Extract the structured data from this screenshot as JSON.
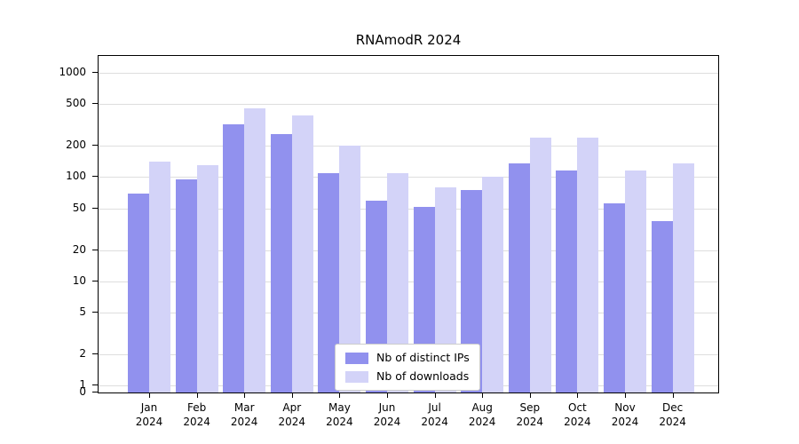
{
  "title": "RNAmodR 2024",
  "colors": {
    "distinct_ips": "#9191ee",
    "downloads": "#d3d3f8",
    "grid": "#dedede",
    "axis": "#000000",
    "legend_border": "#cccccc",
    "background": "#ffffff"
  },
  "y_axis": {
    "ticks": [
      0,
      1,
      2,
      5,
      10,
      20,
      50,
      100,
      200,
      500,
      1000
    ]
  },
  "legend": {
    "items": [
      {
        "label": "Nb of distinct IPs",
        "series": "distinct_ips"
      },
      {
        "label": "Nb of downloads",
        "series": "downloads"
      }
    ]
  },
  "chart_data": {
    "type": "bar",
    "title": "RNAmodR 2024",
    "categories": [
      "Jan 2024",
      "Feb 2024",
      "Mar 2024",
      "Apr 2024",
      "May 2024",
      "Jun 2024",
      "Jul 2024",
      "Aug 2024",
      "Sep 2024",
      "Oct 2024",
      "Nov 2024",
      "Dec 2024"
    ],
    "series": [
      {
        "name": "Nb of distinct IPs",
        "values": [
          70,
          95,
          320,
          260,
          110,
          60,
          52,
          75,
          135,
          115,
          56,
          38
        ]
      },
      {
        "name": "Nb of downloads",
        "values": [
          140,
          130,
          460,
          390,
          200,
          110,
          80,
          100,
          240,
          240,
          115,
          135
        ]
      }
    ],
    "xlabel": "",
    "ylabel": "",
    "yscale": "log-like (0,1,2,5,10,20,50,100,200,500,1000)",
    "ylim": [
      0,
      1000
    ],
    "grid": "horizontal",
    "legend_position": "bottom-center-inside"
  }
}
